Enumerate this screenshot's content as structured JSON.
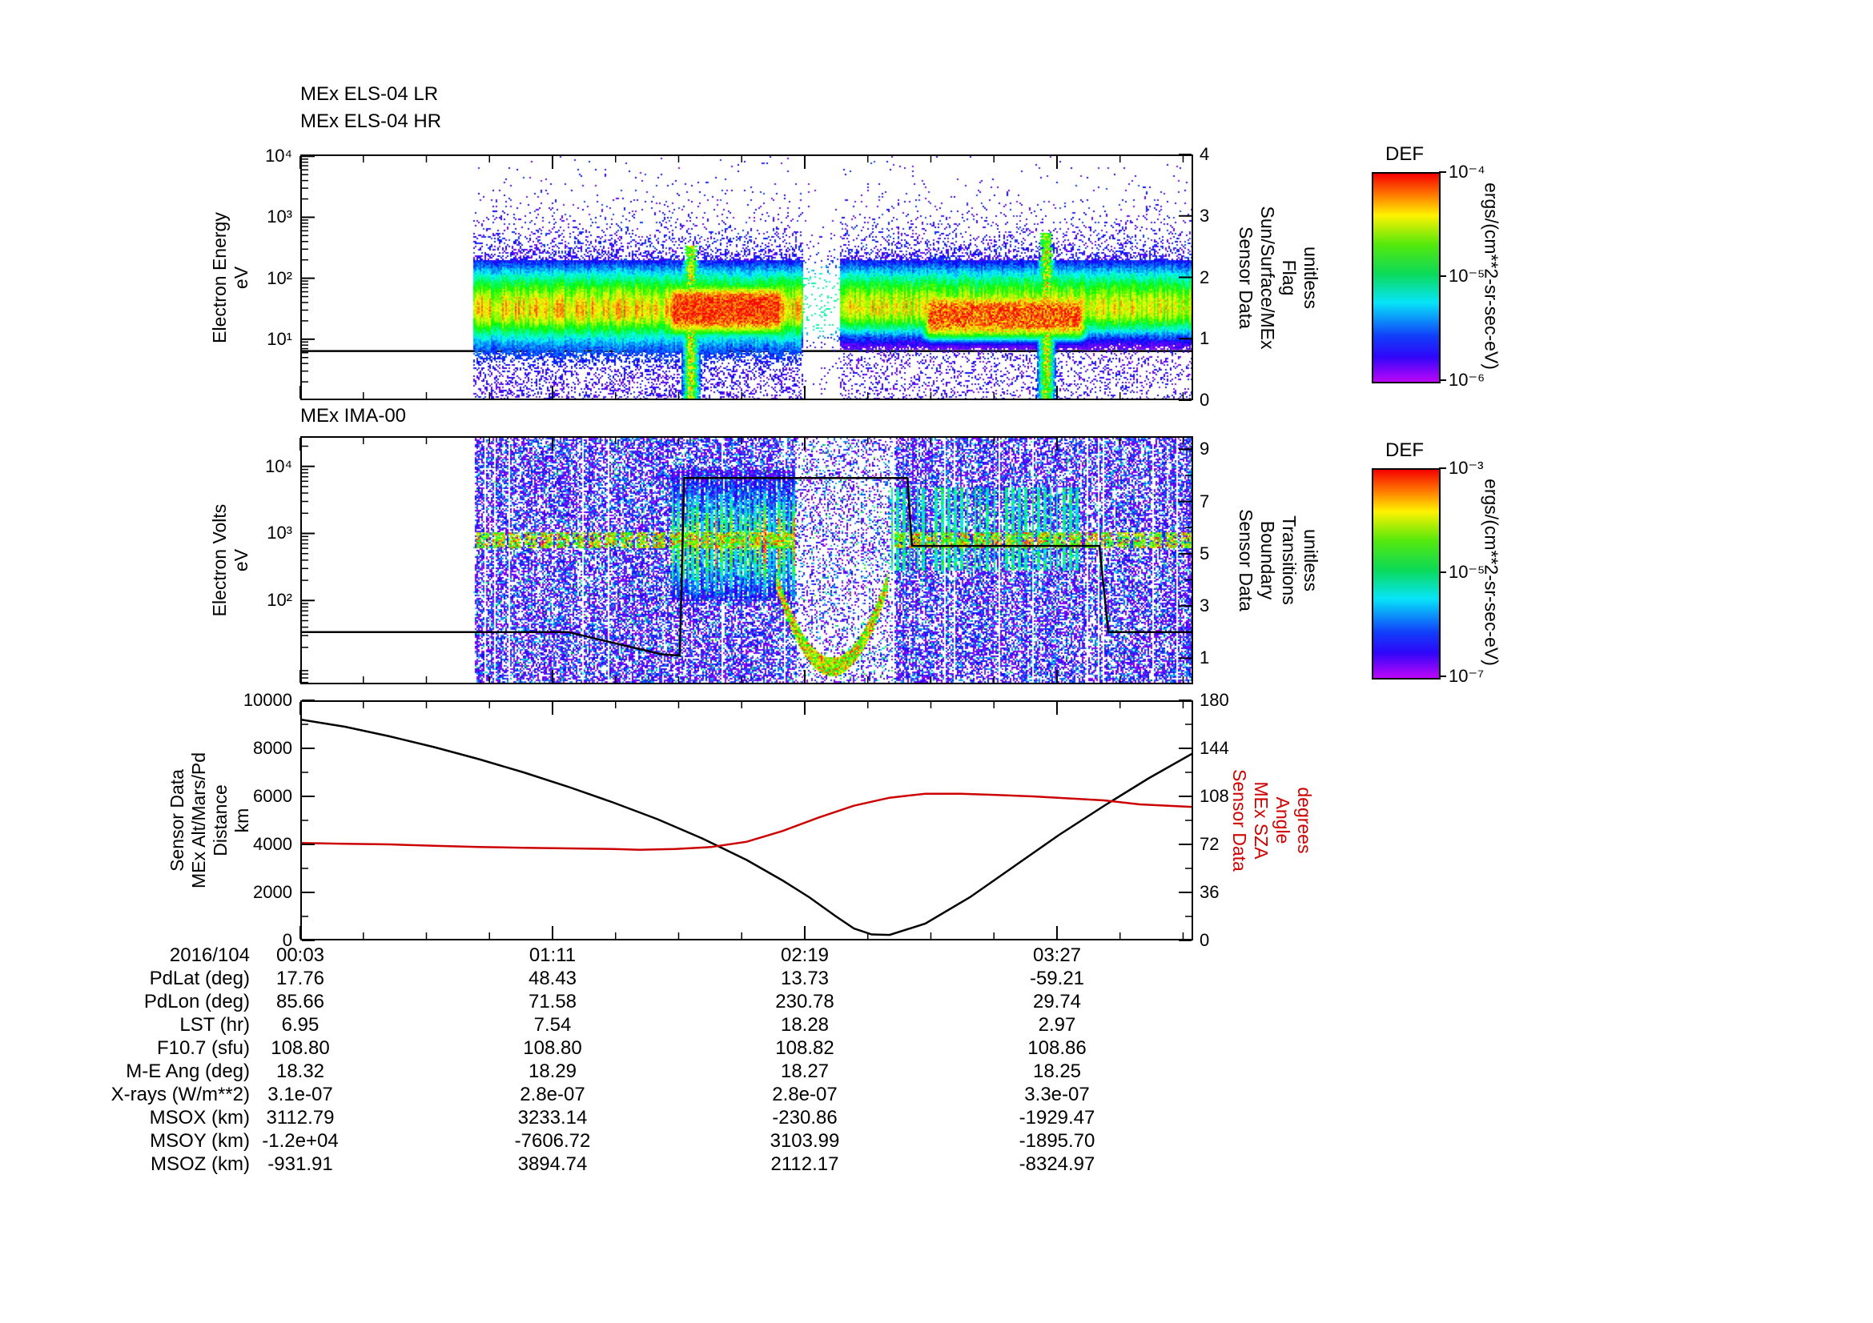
{
  "figure": {
    "bg": "#ffffff"
  },
  "colors": {
    "sza_red": "#cc0000",
    "axis": "#000000"
  },
  "panel_els": {
    "titles": [
      "MEx ELS-04 LR",
      "MEx ELS-04 HR"
    ],
    "ylabel_lines": [
      "Electron Energy",
      "eV"
    ],
    "yticks": [
      {
        "label": "10⁴",
        "log": 4
      },
      {
        "label": "10³",
        "log": 3
      },
      {
        "label": "10²",
        "log": 2
      },
      {
        "label": "10¹",
        "log": 1
      }
    ],
    "right_label_lines": [
      "Sensor Data",
      "Sun/Surface/MEx",
      "Flag",
      "unitless"
    ],
    "right_ticks": [
      {
        "label": "4",
        "v": 4
      },
      {
        "label": "3",
        "v": 3
      },
      {
        "label": "2",
        "v": 2
      },
      {
        "label": "1",
        "v": 1
      },
      {
        "label": "0",
        "v": 0
      }
    ]
  },
  "panel_ima": {
    "title": "MEx IMA-00",
    "ylabel_lines": [
      "Electron Volts",
      "eV"
    ],
    "yticks": [
      {
        "label": "10⁴",
        "log": 4
      },
      {
        "label": "10³",
        "log": 3
      },
      {
        "label": "10²",
        "log": 2
      }
    ],
    "right_label_lines": [
      "Sensor Data",
      "Boundary",
      "Transitions",
      "unitless"
    ],
    "right_ticks": [
      {
        "label": "9",
        "v": 9
      },
      {
        "label": "7",
        "v": 7
      },
      {
        "label": "5",
        "v": 5
      },
      {
        "label": "3",
        "v": 3
      },
      {
        "label": "1",
        "v": 1
      }
    ]
  },
  "panel_bottom": {
    "ylabel_lines": [
      "Sensor Data",
      "MEx Alt/Mars/Pd",
      "Distance",
      "km"
    ],
    "right_label_lines": [
      "Sensor Data",
      "MEx SZA",
      "Angle",
      "degrees"
    ],
    "yticks": [
      {
        "label": "10000",
        "v": 10000
      },
      {
        "label": "8000",
        "v": 8000
      },
      {
        "label": "6000",
        "v": 6000
      },
      {
        "label": "4000",
        "v": 4000
      },
      {
        "label": "2000",
        "v": 2000
      },
      {
        "label": "0",
        "v": 0
      }
    ],
    "right_ticks": [
      {
        "label": "180",
        "v": 180
      },
      {
        "label": "144",
        "v": 144
      },
      {
        "label": "108",
        "v": 108
      },
      {
        "label": "72",
        "v": 72
      },
      {
        "label": "36",
        "v": 36
      },
      {
        "label": "0",
        "v": 0
      }
    ]
  },
  "x_axis": {
    "date": "2016/104",
    "ticks": [
      {
        "label": "00:03",
        "t": 0.0
      },
      {
        "label": "01:11",
        "t": 0.2825
      },
      {
        "label": "02:19",
        "t": 0.565
      },
      {
        "label": "03:27",
        "t": 0.8475
      }
    ]
  },
  "colorbar1": {
    "title": "DEF",
    "units": "ergs/(cm**2-sr-sec-eV)",
    "tick_labels": [
      "10⁻⁴",
      "10⁻⁵",
      "10⁻⁶"
    ]
  },
  "colorbar2": {
    "title": "DEF",
    "units": "ergs/(cm**2-sr-sec-eV)",
    "tick_labels": [
      "10⁻³",
      "10⁻⁵",
      "10⁻⁷"
    ]
  },
  "table": {
    "time_row": {
      "label": "2016/104",
      "values": [
        "00:03",
        "01:11",
        "02:19",
        "03:27"
      ]
    },
    "rows": [
      {
        "label": "PdLat (deg)",
        "values": [
          "17.76",
          "48.43",
          "13.73",
          "-59.21"
        ]
      },
      {
        "label": "PdLon (deg)",
        "values": [
          "85.66",
          "71.58",
          "230.78",
          "29.74"
        ]
      },
      {
        "label": "LST (hr)",
        "values": [
          "6.95",
          "7.54",
          "18.28",
          "2.97"
        ]
      },
      {
        "label": "F10.7 (sfu)",
        "values": [
          "108.80",
          "108.80",
          "108.82",
          "108.86"
        ]
      },
      {
        "label": "M-E Ang (deg)",
        "values": [
          "18.32",
          "18.29",
          "18.27",
          "18.25"
        ]
      },
      {
        "label": "X-rays (W/m**2)",
        "values": [
          "3.1e-07",
          "2.8e-07",
          "2.8e-07",
          "3.3e-07"
        ]
      },
      {
        "label": "MSOX (km)",
        "values": [
          "3112.79",
          "3233.14",
          "-230.86",
          "-1929.47"
        ]
      },
      {
        "label": "MSOY (km)",
        "values": [
          "-1.2e+04",
          "-7606.72",
          "3103.99",
          "-1895.70"
        ]
      },
      {
        "label": "MSOZ (km)",
        "values": [
          "-931.91",
          "3894.74",
          "2112.17",
          "-8324.97"
        ]
      }
    ]
  },
  "chart_data": [
    {
      "type": "heatmap",
      "panel": "els",
      "title": "MEx ELS-04 LR / MEx ELS-04 HR",
      "ylabel": "Electron Energy (eV)",
      "yscale": "log",
      "ylim": [
        1,
        10000
      ],
      "colorbar": {
        "title": "DEF",
        "units": "ergs/(cm**2-sr-sec-eV)",
        "range_exp": [
          -6,
          -4
        ]
      },
      "right_axis": {
        "label": "Sensor Data Sun/Surface/MEx Flag (unitless)",
        "range": [
          0,
          4
        ]
      },
      "x_tick_labels": [
        "00:03",
        "01:11",
        "02:19",
        "03:27"
      ],
      "features": {
        "data_start_frac": 0.193,
        "main_band_logE_center": 1.45,
        "intense_red_intervals_frac": [
          [
            0.405,
            0.55
          ],
          [
            0.69,
            0.888
          ]
        ],
        "data_gap_frac": [
          0.563,
          0.603
        ],
        "spike_fracs": [
          0.437,
          0.835
        ]
      },
      "overlay_series": {
        "name": "flag",
        "t": [
          0,
          1
        ],
        "v": [
          0.8,
          0.8
        ]
      }
    },
    {
      "type": "heatmap",
      "panel": "ima",
      "title": "MEx IMA-00",
      "ylabel": "Electron Volts (eV)",
      "yscale": "log",
      "ylim": [
        6,
        28000
      ],
      "colorbar": {
        "title": "DEF",
        "units": "ergs/(cm**2-sr-sec-eV)",
        "range_exp": [
          -7,
          -3
        ]
      },
      "right_axis": {
        "label": "Sensor Data Boundary Transitions (unitless)",
        "range": [
          0,
          9.5
        ]
      },
      "x_tick_labels": [
        "00:03",
        "01:11",
        "02:19",
        "03:27"
      ],
      "features": {
        "data_start_frac": 0.193,
        "band_logV": 2.9,
        "dispersed_stripe_intervals_frac": [
          [
            0.415,
            0.555
          ],
          [
            0.66,
            0.875
          ]
        ],
        "periapsis_arc_frac": [
          0.528,
          0.662
        ]
      },
      "overlay_series": {
        "name": "boundary",
        "t": [
          0,
          0.3,
          0.355,
          0.405,
          0.425,
          0.43,
          0.68,
          0.685,
          0.895,
          0.905,
          1
        ],
        "v": [
          2,
          2,
          1.55,
          1.15,
          1.1,
          7.9,
          7.9,
          5.3,
          5.3,
          2,
          2
        ]
      }
    },
    {
      "type": "line",
      "panel": "bottom",
      "ylim_left": [
        0,
        10000
      ],
      "ylim_right": [
        0,
        180
      ],
      "x_tick_labels": [
        "00:03",
        "01:11",
        "02:19",
        "03:27"
      ],
      "series": [
        {
          "name": "Sensor Data MEx Alt/Mars/Pd Distance (km)",
          "color": "#000000",
          "axis": "left",
          "t": [
            0,
            0.05,
            0.1,
            0.15,
            0.2,
            0.25,
            0.3,
            0.35,
            0.4,
            0.45,
            0.5,
            0.54,
            0.57,
            0.6,
            0.62,
            0.64,
            0.66,
            0.7,
            0.75,
            0.8,
            0.85,
            0.9,
            0.95,
            1
          ],
          "v": [
            9200,
            8900,
            8500,
            8050,
            7550,
            7000,
            6400,
            5750,
            5050,
            4250,
            3350,
            2500,
            1800,
            1000,
            500,
            250,
            230,
            700,
            1800,
            3100,
            4400,
            5600,
            6750,
            7800
          ]
        },
        {
          "name": "Sensor Data MEx SZA Angle (degrees)",
          "color": "#cc0000",
          "axis": "right",
          "t": [
            0,
            0.05,
            0.1,
            0.15,
            0.2,
            0.25,
            0.3,
            0.35,
            0.38,
            0.42,
            0.46,
            0.5,
            0.54,
            0.58,
            0.62,
            0.66,
            0.7,
            0.74,
            0.78,
            0.82,
            0.86,
            0.9,
            0.94,
            1
          ],
          "v": [
            73,
            72.5,
            72,
            71,
            70,
            69.5,
            69,
            68.5,
            68,
            68.5,
            70,
            74,
            82,
            92,
            101,
            107,
            110,
            110,
            109,
            108,
            106.5,
            105,
            102,
            100
          ]
        }
      ]
    }
  ]
}
